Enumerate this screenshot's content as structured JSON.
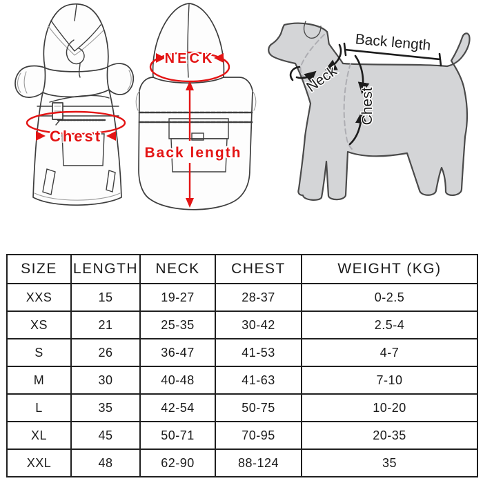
{
  "colors": {
    "annotation_red": "#e31414",
    "sketch_line": "#3d3d3d",
    "dog_fill": "#d4d5d7",
    "dog_outline": "#4a4a4a",
    "dashed_line": "#adadb2",
    "black_annotation": "#1c1c1c",
    "table_border": "#1f1f1f",
    "table_text": "#1a1a1a"
  },
  "diagrams": {
    "coat_front": {
      "chest_label": "Chest"
    },
    "coat_back": {
      "neck_label": "NECK",
      "back_length_label": "Back length"
    },
    "dog": {
      "back_length_label": "Back length",
      "neck_label": "Neck",
      "chest_label": "Chest"
    }
  },
  "table": {
    "headers": [
      "SIZE",
      "LENGTH",
      "NECK",
      "CHEST",
      "WEIGHT (KG)"
    ],
    "rows": [
      [
        "XXS",
        "15",
        "19-27",
        "28-37",
        "0-2.5"
      ],
      [
        "XS",
        "21",
        "25-35",
        "30-42",
        "2.5-4"
      ],
      [
        "S",
        "26",
        "36-47",
        "41-53",
        "4-7"
      ],
      [
        "M",
        "30",
        "40-48",
        "41-63",
        "7-10"
      ],
      [
        "L",
        "35",
        "42-54",
        "50-75",
        "10-20"
      ],
      [
        "XL",
        "45",
        "50-71",
        "70-95",
        "20-35"
      ],
      [
        "XXL",
        "48",
        "62-90",
        "88-124",
        "35"
      ]
    ]
  }
}
